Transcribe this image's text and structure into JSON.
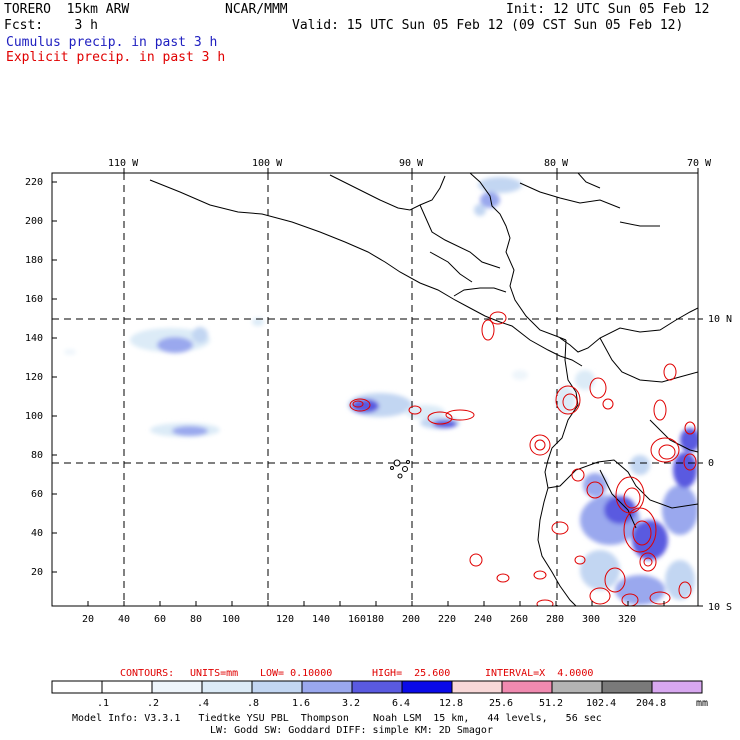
{
  "header": {
    "model": "TORERO  15km ARW",
    "org": "NCAR/MMM",
    "init": "Init: 12 UTC Sun 05 Feb 12",
    "fcst": "Fcst:    3 h",
    "valid": "Valid: 15 UTC Sun 05 Feb 12 (09 CST Sun 05 Feb 12)",
    "line_cumulus": "Cumulus precip. in past 3 h",
    "line_explicit": "Explicit precip. in past 3 h"
  },
  "map": {
    "lon_labels": [
      "110 W",
      "100 W",
      "90 W",
      "80 W",
      "70 W"
    ],
    "lat_labels": [
      "10 N",
      "0",
      "10 S"
    ],
    "y_ticks": [
      "220",
      "200",
      "180",
      "160",
      "140",
      "120",
      "100",
      "80",
      "60",
      "40",
      "20"
    ],
    "x_ticks": [
      "20",
      "40",
      "60",
      "80",
      "100",
      "120",
      "140",
      "160",
      "180",
      "200",
      "220",
      "240",
      "260",
      "280",
      "300",
      "320"
    ]
  },
  "contour_info": {
    "contours": "CONTOURS:",
    "units": "UNITS=mm",
    "low": "LOW= 0.10000",
    "high": "HIGH=  25.600",
    "interval": "INTERVAL=X  4.0000"
  },
  "colorbar": {
    "unit": "mm",
    "labels": [
      ".1",
      ".2",
      ".4",
      ".8",
      "1.6",
      "3.2",
      "6.4",
      "12.8",
      "25.6",
      "51.2",
      "102.4",
      "204.8"
    ],
    "colors": [
      "#ffffff",
      "#ffffff",
      "#eef5fb",
      "#dcebf7",
      "#c2d6f2",
      "#9aa8ee",
      "#5a5ae0",
      "#0a0ae8",
      "#f8d8d8",
      "#f08ab0",
      "#b4b4b4",
      "#7a7a7a",
      "#d8a8f0"
    ]
  },
  "footer": {
    "line1": "Model Info: V3.3.1   Tiedtke YSU PBL  Thompson    Noah LSM  15 km,   44 levels,   56 sec",
    "line2": "LW: Godd SW: Goddard DIFF: simple KM: 2D Smagor"
  }
}
